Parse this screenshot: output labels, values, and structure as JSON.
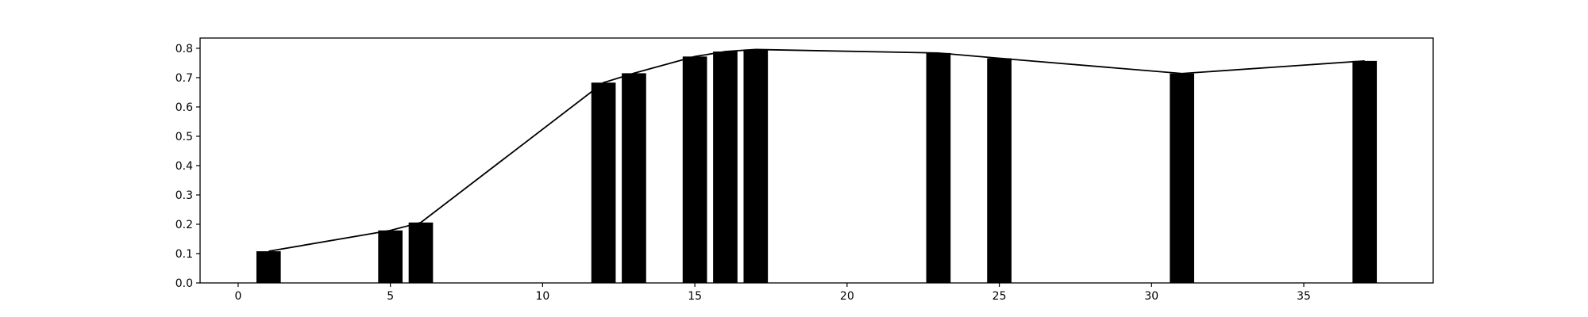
{
  "chart_data": {
    "type": "bar",
    "title": "",
    "xlabel": "",
    "ylabel": "",
    "xlim": [
      -1.25,
      39.25
    ],
    "ylim": [
      0,
      0.835
    ],
    "xticks": [
      0,
      5,
      10,
      15,
      20,
      25,
      30,
      35
    ],
    "yticks": [
      0.0,
      0.1,
      0.2,
      0.3,
      0.4,
      0.5,
      0.6,
      0.7,
      0.8
    ],
    "xtick_labels": [
      "0",
      "5",
      "10",
      "15",
      "20",
      "25",
      "30",
      "35"
    ],
    "ytick_labels": [
      "0.0",
      "0.1",
      "0.2",
      "0.3",
      "0.4",
      "0.5",
      "0.6",
      "0.7",
      "0.8"
    ],
    "grid": false,
    "bar_color": "#000000",
    "line_color": "#000000",
    "bar_width": 0.8,
    "x": [
      1,
      5,
      6,
      12,
      13,
      15,
      16,
      17,
      23,
      25,
      31,
      37
    ],
    "values": [
      0.108,
      0.179,
      0.206,
      0.683,
      0.715,
      0.772,
      0.789,
      0.796,
      0.784,
      0.766,
      0.714,
      0.757
    ],
    "line": {
      "x": [
        1,
        5,
        6,
        12,
        13,
        15,
        16,
        17,
        23,
        25,
        31,
        37
      ],
      "y": [
        0.108,
        0.179,
        0.206,
        0.683,
        0.715,
        0.772,
        0.789,
        0.796,
        0.784,
        0.766,
        0.714,
        0.757
      ]
    }
  }
}
